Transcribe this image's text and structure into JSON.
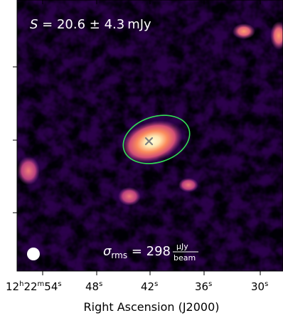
{
  "chart_data": {
    "type": "heatmap",
    "colormap": "magma",
    "xlabel": "Right Ascension (J2000)",
    "ylabel": "",
    "title": "",
    "annotations": {
      "flux": {
        "symbol": "S",
        "equals": " = ",
        "value": "20.6",
        "pm": " ± ",
        "error": "4.3",
        "unit": "mJy"
      },
      "rms": {
        "symbol": "σ",
        "subscript": "rms",
        "equals": " = ",
        "value": "298",
        "unit_num": "μJy",
        "unit_den": "beam"
      }
    },
    "x_ticks": [
      {
        "h": "12",
        "m": "22",
        "s": "54",
        "label_hms": true
      },
      {
        "s": "48"
      },
      {
        "s": "42"
      },
      {
        "s": "36"
      },
      {
        "s": "30"
      }
    ],
    "y_ticks_count": 3,
    "source_marker": "x-marker",
    "aperture": "ellipse",
    "beam": "circle",
    "colors": {
      "aperture": "#33dd55",
      "marker": "#808080",
      "beam": "#ffffff",
      "background": "#000004"
    }
  }
}
